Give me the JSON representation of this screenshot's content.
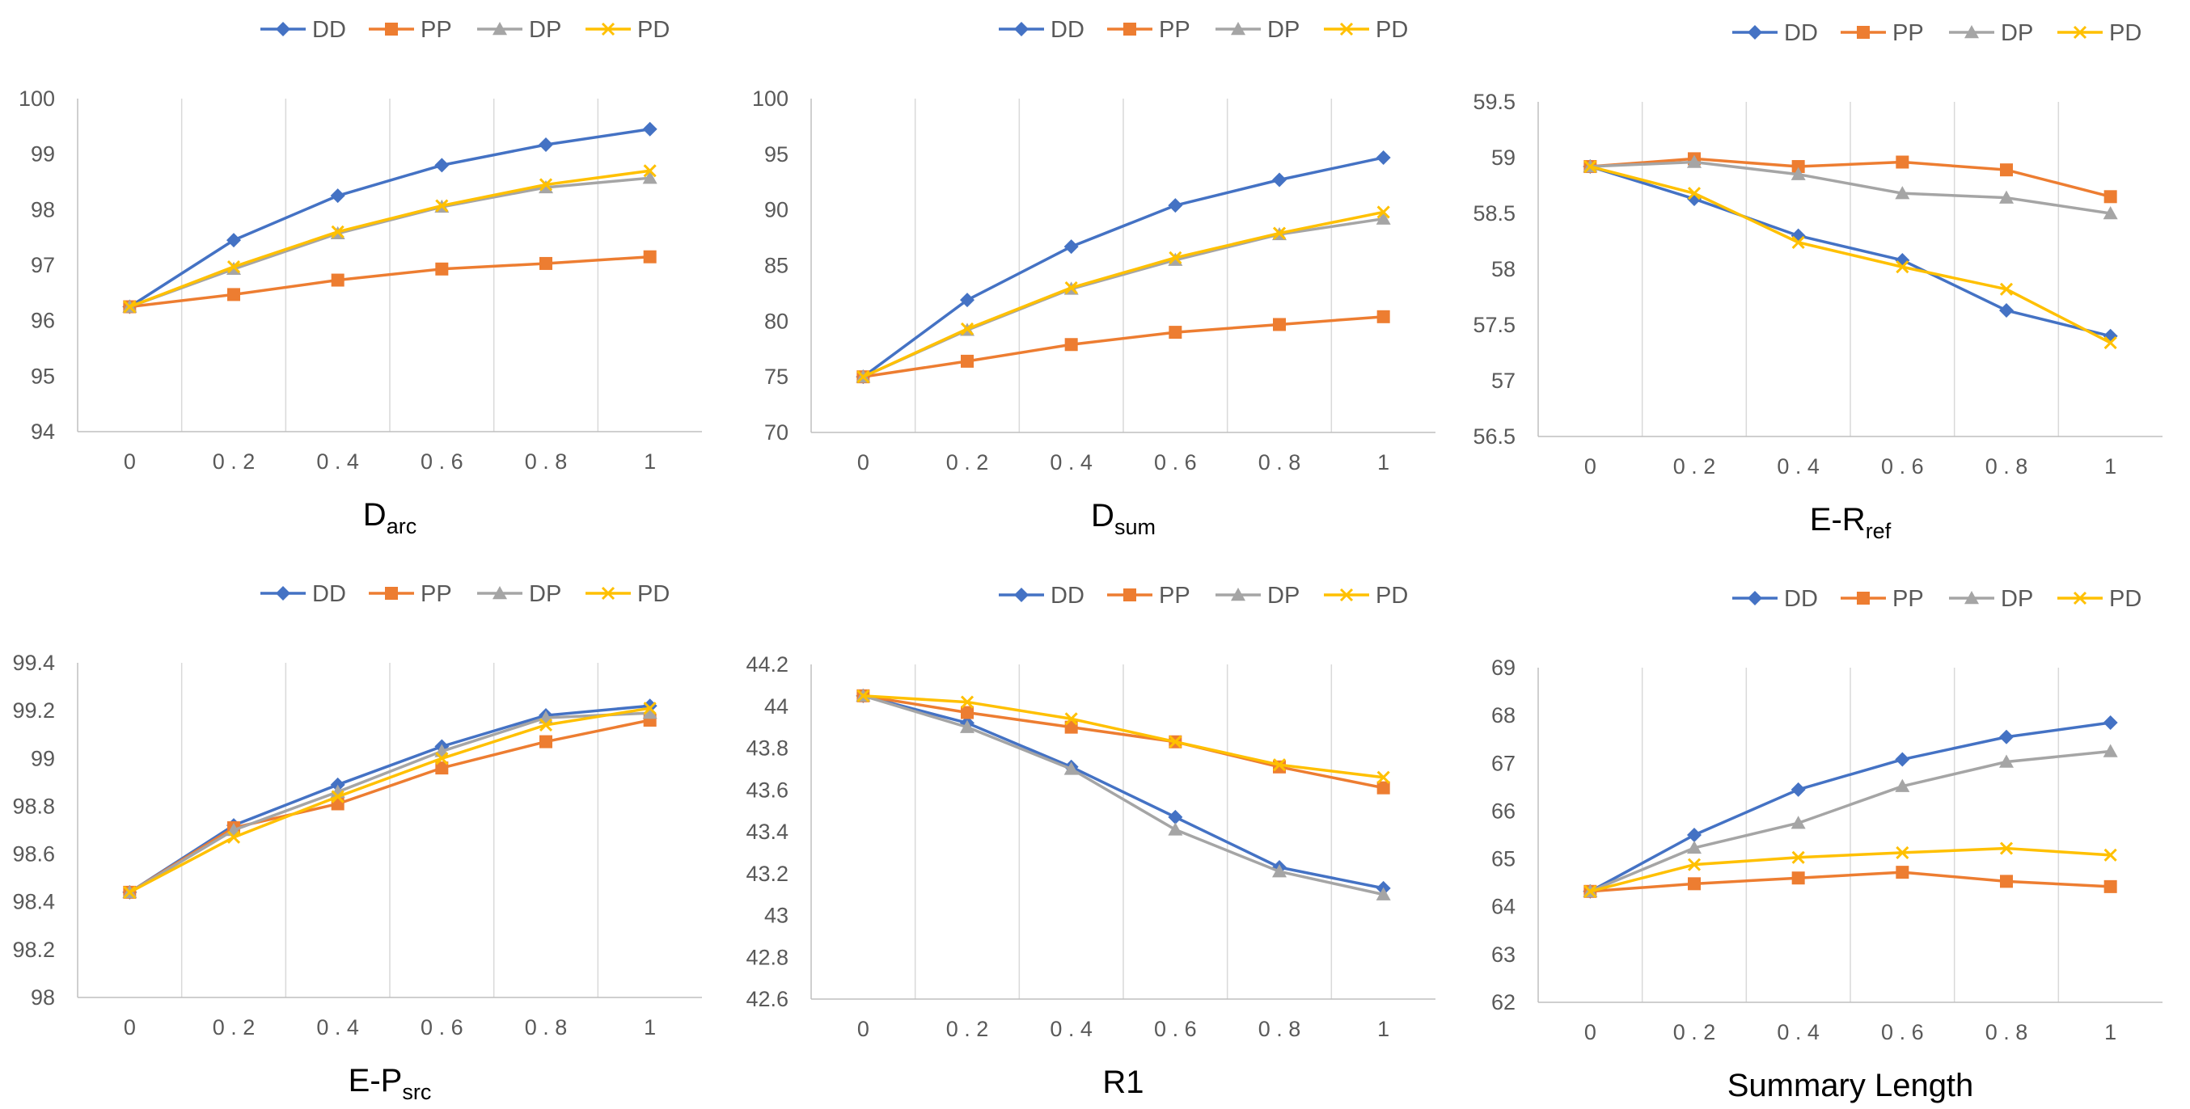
{
  "colors": {
    "DD": "#4472C4",
    "PP": "#ED7D31",
    "DP": "#A5A5A5",
    "PD": "#FFC000",
    "grid": "#D9D9D9",
    "axis": "#BFBFBF",
    "text": "#595959"
  },
  "chart_data": [
    {
      "type": "line",
      "title": "",
      "xlabel": {
        "base": "D",
        "sub": "arc"
      },
      "ylabel": "",
      "categories": [
        "0",
        "0.2",
        "0.4",
        "0.6",
        "0.8",
        "1"
      ],
      "xtick_labels": [
        "0",
        "0 . 2",
        "0 . 4",
        "0 . 6",
        "0 . 8",
        "1"
      ],
      "ylim": [
        94,
        100
      ],
      "ystep": 1,
      "yticks": [
        "94",
        "95",
        "96",
        "97",
        "98",
        "99",
        "100"
      ],
      "grid": "vertical",
      "legend": "top",
      "series": [
        {
          "name": "DD",
          "marker": "diamond",
          "values": [
            96.25,
            97.45,
            98.25,
            98.8,
            99.17,
            99.45
          ]
        },
        {
          "name": "PP",
          "marker": "square",
          "values": [
            96.25,
            96.47,
            96.73,
            96.93,
            97.03,
            97.15
          ]
        },
        {
          "name": "DP",
          "marker": "triangle",
          "values": [
            96.25,
            96.93,
            97.57,
            98.05,
            98.4,
            98.57
          ]
        },
        {
          "name": "PD",
          "marker": "x",
          "values": [
            96.25,
            96.97,
            97.6,
            98.07,
            98.45,
            98.7
          ]
        }
      ]
    },
    {
      "type": "line",
      "title": "",
      "xlabel": {
        "base": "D",
        "sub": "sum"
      },
      "ylabel": "",
      "categories": [
        "0",
        "0.2",
        "0.4",
        "0.6",
        "0.8",
        "1"
      ],
      "xtick_labels": [
        "0",
        "0 . 2",
        "0 . 4",
        "0 . 6",
        "0 . 8",
        "1"
      ],
      "ylim": [
        70,
        100
      ],
      "ystep": 5,
      "yticks": [
        "70",
        "75",
        "80",
        "85",
        "90",
        "95",
        "100"
      ],
      "grid": "vertical",
      "legend": "top",
      "series": [
        {
          "name": "DD",
          "marker": "diamond",
          "values": [
            75,
            81.9,
            86.7,
            90.4,
            92.7,
            94.7
          ]
        },
        {
          "name": "PP",
          "marker": "square",
          "values": [
            75,
            76.4,
            77.9,
            79,
            79.7,
            80.4
          ]
        },
        {
          "name": "DP",
          "marker": "triangle",
          "values": [
            75,
            79.2,
            82.9,
            85.5,
            87.8,
            89.2
          ]
        },
        {
          "name": "PD",
          "marker": "x",
          "values": [
            75,
            79.3,
            83,
            85.7,
            87.9,
            89.8
          ]
        }
      ]
    },
    {
      "type": "line",
      "title": "",
      "xlabel": {
        "base": "E-R",
        "sub": "ref"
      },
      "ylabel": "",
      "categories": [
        "0",
        "0.2",
        "0.4",
        "0.6",
        "0.8",
        "1"
      ],
      "xtick_labels": [
        "0",
        "0 . 2",
        "0 . 4",
        "0 . 6",
        "0 . 8",
        "1"
      ],
      "ylim": [
        56.5,
        59.5
      ],
      "ystep": 0.5,
      "yticks": [
        "56.5",
        "57",
        "57.5",
        "58",
        "58.5",
        "59",
        "59.5"
      ],
      "grid": "vertical",
      "legend": "top",
      "series": [
        {
          "name": "DD",
          "marker": "diamond",
          "values": [
            58.92,
            58.63,
            58.3,
            58.08,
            57.63,
            57.4
          ]
        },
        {
          "name": "PP",
          "marker": "square",
          "values": [
            58.92,
            58.99,
            58.92,
            58.96,
            58.89,
            58.65
          ]
        },
        {
          "name": "DP",
          "marker": "triangle",
          "values": [
            58.92,
            58.96,
            58.85,
            58.68,
            58.64,
            58.5
          ]
        },
        {
          "name": "PD",
          "marker": "x",
          "values": [
            58.92,
            58.68,
            58.24,
            58.02,
            57.82,
            57.34
          ]
        }
      ]
    },
    {
      "type": "line",
      "title": "",
      "xlabel": {
        "base": "E-P",
        "sub": "src"
      },
      "ylabel": "",
      "categories": [
        "0",
        "0.2",
        "0.4",
        "0.6",
        "0.8",
        "1"
      ],
      "xtick_labels": [
        "0",
        "0 . 2",
        "0 . 4",
        "0 . 6",
        "0 . 8",
        "1"
      ],
      "ylim": [
        98,
        99.4
      ],
      "ystep": 0.2,
      "yticks": [
        "98",
        "98.2",
        "98.4",
        "98.6",
        "98.8",
        "99",
        "99.2",
        "99.4"
      ],
      "grid": "vertical",
      "legend": "top",
      "series": [
        {
          "name": "DD",
          "marker": "diamond",
          "values": [
            98.44,
            98.72,
            98.89,
            99.05,
            99.18,
            99.22
          ]
        },
        {
          "name": "PP",
          "marker": "square",
          "values": [
            98.44,
            98.71,
            98.81,
            98.96,
            99.07,
            99.16
          ]
        },
        {
          "name": "DP",
          "marker": "triangle",
          "values": [
            98.44,
            98.7,
            98.86,
            99.03,
            99.17,
            99.19
          ]
        },
        {
          "name": "PD",
          "marker": "x",
          "values": [
            98.44,
            98.67,
            98.84,
            99,
            99.14,
            99.21
          ]
        }
      ]
    },
    {
      "type": "line",
      "title": "",
      "xlabel": {
        "base": "R1",
        "sub": ""
      },
      "ylabel": "",
      "categories": [
        "0",
        "0.2",
        "0.4",
        "0.6",
        "0.8",
        "1"
      ],
      "xtick_labels": [
        "0",
        "0 . 2",
        "0 . 4",
        "0 . 6",
        "0 . 8",
        "1"
      ],
      "ylim": [
        42.6,
        44.2
      ],
      "ystep": 0.2,
      "yticks": [
        "42.6",
        "42.8",
        "43",
        "43.2",
        "43.4",
        "43.6",
        "43.8",
        "44",
        "44.2"
      ],
      "grid": "vertical",
      "legend": "top",
      "series": [
        {
          "name": "DD",
          "marker": "diamond",
          "values": [
            44.05,
            43.92,
            43.71,
            43.47,
            43.23,
            43.13
          ]
        },
        {
          "name": "PP",
          "marker": "square",
          "values": [
            44.05,
            43.97,
            43.9,
            43.83,
            43.71,
            43.61
          ]
        },
        {
          "name": "DP",
          "marker": "triangle",
          "values": [
            44.05,
            43.9,
            43.7,
            43.41,
            43.21,
            43.1
          ]
        },
        {
          "name": "PD",
          "marker": "x",
          "values": [
            44.05,
            44.02,
            43.94,
            43.83,
            43.72,
            43.66
          ]
        }
      ]
    },
    {
      "type": "line",
      "title": "",
      "xlabel": {
        "base": "Summary Length",
        "sub": ""
      },
      "ylabel": "",
      "categories": [
        "0",
        "0.2",
        "0.4",
        "0.6",
        "0.8",
        "1"
      ],
      "xtick_labels": [
        "0",
        "0 . 2",
        "0 . 4",
        "0 . 6",
        "0 . 8",
        "1"
      ],
      "ylim": [
        62,
        69
      ],
      "ystep": 1,
      "yticks": [
        "62",
        "63",
        "64",
        "65",
        "66",
        "67",
        "68",
        "69"
      ],
      "grid": "vertical",
      "legend": "top",
      "series": [
        {
          "name": "DD",
          "marker": "diamond",
          "values": [
            64.32,
            65.5,
            66.45,
            67.08,
            67.55,
            67.85
          ]
        },
        {
          "name": "PP",
          "marker": "square",
          "values": [
            64.32,
            64.48,
            64.6,
            64.72,
            64.53,
            64.42
          ]
        },
        {
          "name": "DP",
          "marker": "triangle",
          "values": [
            64.32,
            65.23,
            65.75,
            66.52,
            67.03,
            67.25
          ]
        },
        {
          "name": "PD",
          "marker": "x",
          "values": [
            64.32,
            64.88,
            65.03,
            65.13,
            65.22,
            65.08
          ]
        }
      ]
    }
  ]
}
